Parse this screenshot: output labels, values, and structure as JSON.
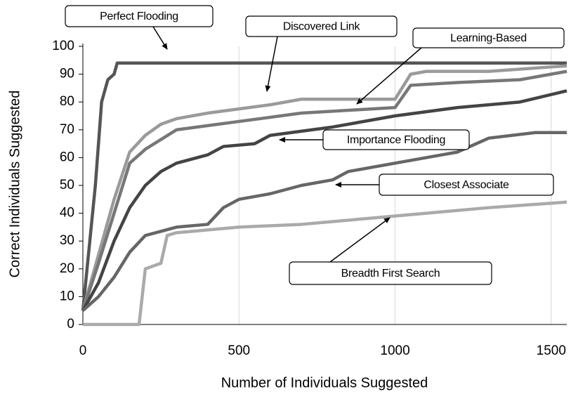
{
  "chart_data": {
    "type": "line",
    "xlabel": "Number of Individuals Suggested",
    "ylabel": "Correct Individuals Suggested",
    "xlim": [
      0,
      1550
    ],
    "ylim": [
      0,
      100
    ],
    "xticks": [
      0,
      500,
      1000,
      1500
    ],
    "yticks": [
      0,
      10,
      20,
      30,
      40,
      50,
      60,
      70,
      80,
      90,
      100
    ],
    "series": [
      {
        "name": "Perfect Flooding",
        "color": "#555555",
        "x": [
          0,
          40,
          60,
          80,
          100,
          110,
          1550
        ],
        "values": [
          5,
          50,
          80,
          88,
          90,
          94,
          94
        ]
      },
      {
        "name": "Discovered Link",
        "color": "#9a9a9a",
        "x": [
          0,
          50,
          100,
          150,
          200,
          250,
          300,
          400,
          600,
          700,
          1000,
          1050,
          1100,
          1300,
          1550
        ],
        "values": [
          5,
          25,
          45,
          62,
          68,
          72,
          74,
          76,
          79,
          81,
          81,
          90,
          91,
          91,
          93
        ]
      },
      {
        "name": "Learning-Based",
        "color": "#777777",
        "x": [
          0,
          50,
          100,
          150,
          200,
          300,
          500,
          700,
          1000,
          1050,
          1200,
          1400,
          1550
        ],
        "values": [
          5,
          22,
          40,
          58,
          63,
          70,
          73,
          76,
          78,
          86,
          87,
          88,
          91
        ]
      },
      {
        "name": "Importance Flooding",
        "color": "#444444",
        "x": [
          0,
          50,
          100,
          150,
          200,
          250,
          300,
          400,
          450,
          550,
          600,
          800,
          1000,
          1200,
          1400,
          1550
        ],
        "values": [
          5,
          15,
          30,
          42,
          50,
          55,
          58,
          61,
          64,
          65,
          68,
          71,
          75,
          78,
          80,
          84
        ]
      },
      {
        "name": "Closest Associate",
        "color": "#666666",
        "x": [
          0,
          50,
          100,
          150,
          200,
          300,
          400,
          450,
          500,
          600,
          700,
          800,
          850,
          1000,
          1200,
          1300,
          1450,
          1550
        ],
        "values": [
          5,
          10,
          17,
          26,
          32,
          35,
          36,
          42,
          45,
          47,
          50,
          52,
          55,
          58,
          62,
          67,
          69,
          69
        ]
      },
      {
        "name": "Breadth First Search",
        "color": "#aaaaaa",
        "x": [
          0,
          180,
          200,
          250,
          270,
          300,
          500,
          700,
          900,
          1100,
          1300,
          1550
        ],
        "values": [
          0,
          0,
          20,
          22,
          32,
          33,
          35,
          36,
          38,
          40,
          42,
          44
        ]
      }
    ]
  }
}
